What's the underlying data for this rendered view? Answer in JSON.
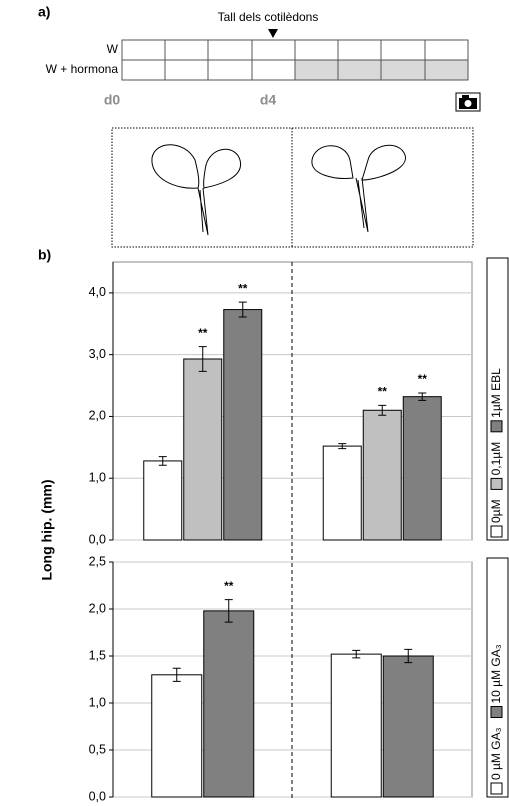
{
  "diagram": {
    "label": "a)",
    "title": "Tall dels cotilèdons",
    "rows": [
      "W",
      "W + hormona"
    ],
    "days": [
      "d0",
      "d4"
    ]
  },
  "panel_b_label": "b)",
  "ylabel": "Long hip. (mm)",
  "chart_data": [
    {
      "type": "bar",
      "categories": [
        null,
        null
      ],
      "ylim": [
        0,
        4.5
      ],
      "yticks": [
        {
          "value": 0,
          "label": "0,0"
        },
        {
          "value": 1,
          "label": "1,0"
        },
        {
          "value": 2,
          "label": "2,0"
        },
        {
          "value": 3,
          "label": "3,0"
        },
        {
          "value": 4,
          "label": "4,0"
        }
      ],
      "grid": true,
      "series": [
        {
          "name": "0µM",
          "color": "#ffffff",
          "values": [
            1.28,
            1.52
          ],
          "errors": [
            0.07,
            0.04
          ],
          "significance": [
            null,
            null
          ]
        },
        {
          "name": "0,1µM",
          "color": "#c0c0c0",
          "values": [
            2.93,
            2.1
          ],
          "errors": [
            0.2,
            0.08
          ],
          "significance": [
            "**",
            "**"
          ]
        },
        {
          "name": "1µM EBL",
          "color": "#808080",
          "values": [
            3.73,
            2.32
          ],
          "errors": [
            0.12,
            0.06
          ],
          "significance": [
            "**",
            "**"
          ]
        }
      ]
    },
    {
      "type": "bar",
      "categories": [
        null,
        null
      ],
      "ylim": [
        0,
        2.5
      ],
      "yticks": [
        {
          "value": 0,
          "label": "0,0"
        },
        {
          "value": 0.5,
          "label": "0,5"
        },
        {
          "value": 1,
          "label": "1,0"
        },
        {
          "value": 1.5,
          "label": "1,5"
        },
        {
          "value": 2,
          "label": "2,0"
        },
        {
          "value": 2.5,
          "label": "2,5"
        }
      ],
      "grid": true,
      "series": [
        {
          "name": "0 µM GA₃",
          "color": "#ffffff",
          "values": [
            1.3,
            1.52
          ],
          "errors": [
            0.07,
            0.04
          ],
          "significance": [
            null,
            null
          ]
        },
        {
          "name": "10 µM GA₃",
          "color": "#808080",
          "values": [
            1.98,
            1.5
          ],
          "errors": [
            0.12,
            0.07
          ],
          "significance": [
            "**",
            null
          ]
        }
      ]
    }
  ]
}
